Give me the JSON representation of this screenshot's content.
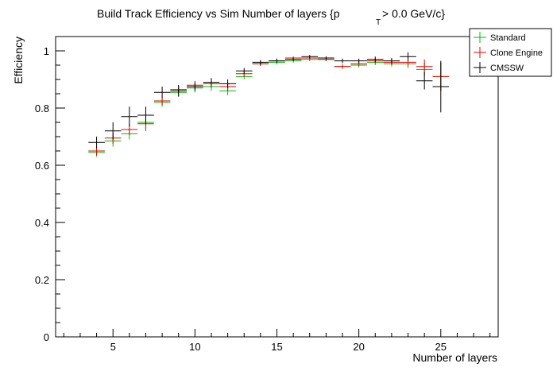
{
  "chart_data": {
    "type": "scatter",
    "title_main": "Build Track Efficiency vs Sim Number of layers {p",
    "title_sub": "T",
    "title_tail": " > 0.0 GeV/c}",
    "xlabel": "Number of layers",
    "ylabel": "Efficiency",
    "xlim": [
      1.5,
      28.5
    ],
    "ylim": [
      0,
      1.05
    ],
    "x_ticks": [
      5,
      10,
      15,
      20,
      25
    ],
    "y_ticks": [
      0,
      0.2,
      0.4,
      0.6,
      0.8,
      1
    ],
    "y_tick_labels": [
      "0",
      "0.2",
      "0.4",
      "0.6",
      "0.8",
      "1"
    ],
    "legend_position": "top-right",
    "series": [
      {
        "name": "Standard",
        "color": "#00bb00",
        "x": [
          4,
          5,
          6,
          7,
          8,
          9,
          10,
          11,
          12,
          13,
          14,
          15,
          16,
          17,
          18,
          19,
          20,
          21,
          22,
          23,
          24,
          25
        ],
        "y": [
          0.645,
          0.685,
          0.71,
          0.75,
          0.82,
          0.855,
          0.87,
          0.875,
          0.86,
          0.91,
          0.955,
          0.96,
          0.965,
          0.97,
          0.97,
          0.945,
          0.95,
          0.96,
          0.955,
          0.955,
          0.935,
          0.91
        ],
        "yerr": [
          0.015,
          0.02,
          0.02,
          0.02,
          0.015,
          0.015,
          0.015,
          0.015,
          0.015,
          0.01,
          0.008,
          0.008,
          0.006,
          0.006,
          0.006,
          0.008,
          0.008,
          0.01,
          0.01,
          0.015,
          0.025,
          0.05
        ]
      },
      {
        "name": "Clone Engine",
        "color": "#ee0000",
        "x": [
          4,
          5,
          6,
          7,
          8,
          9,
          10,
          11,
          12,
          13,
          14,
          15,
          16,
          17,
          18,
          19,
          20,
          21,
          22,
          23,
          24,
          25
        ],
        "y": [
          0.65,
          0.695,
          0.725,
          0.745,
          0.825,
          0.865,
          0.88,
          0.885,
          0.875,
          0.92,
          0.955,
          0.965,
          0.975,
          0.975,
          0.97,
          0.945,
          0.955,
          0.965,
          0.96,
          0.96,
          0.945,
          0.91
        ],
        "yerr": [
          0.015,
          0.02,
          0.02,
          0.025,
          0.015,
          0.015,
          0.015,
          0.015,
          0.015,
          0.01,
          0.008,
          0.008,
          0.006,
          0.006,
          0.006,
          0.008,
          0.008,
          0.01,
          0.01,
          0.015,
          0.025,
          0.05
        ]
      },
      {
        "name": "CMSSW",
        "color": "#000000",
        "x": [
          4,
          5,
          6,
          7,
          8,
          9,
          10,
          11,
          12,
          13,
          14,
          15,
          16,
          17,
          18,
          19,
          20,
          21,
          22,
          23,
          24,
          25
        ],
        "y": [
          0.68,
          0.72,
          0.77,
          0.775,
          0.855,
          0.86,
          0.875,
          0.89,
          0.885,
          0.93,
          0.96,
          0.965,
          0.97,
          0.98,
          0.975,
          0.965,
          0.965,
          0.97,
          0.965,
          0.98,
          0.895,
          0.875
        ],
        "yerr": [
          0.02,
          0.03,
          0.035,
          0.03,
          0.02,
          0.02,
          0.015,
          0.015,
          0.015,
          0.01,
          0.008,
          0.008,
          0.006,
          0.006,
          0.006,
          0.008,
          0.008,
          0.01,
          0.01,
          0.015,
          0.03,
          0.09
        ]
      }
    ]
  }
}
